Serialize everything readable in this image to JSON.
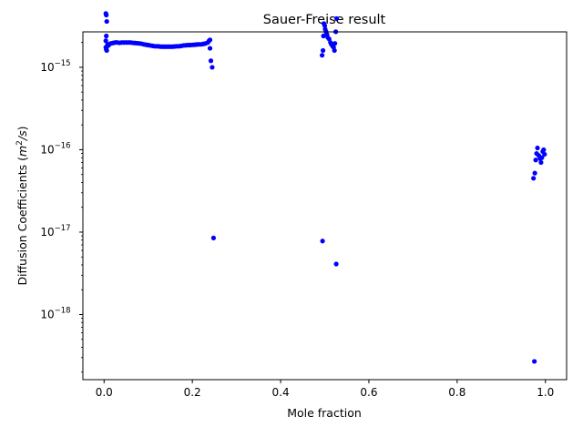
{
  "chart_data": {
    "type": "scatter",
    "title": "Sauer-Freise result",
    "xlabel": "Mole fraction",
    "ylabel_main": "Diffusion Coefficients (",
    "ylabel_math_base": "m",
    "ylabel_math_sup": "2",
    "ylabel_math_rest": "/s",
    "ylabel_close": ")",
    "yscale": "log",
    "xlim": [
      -0.048,
      1.048
    ],
    "ylim_exp": [
      -18.79,
      -14.57
    ],
    "x_ticks": [
      {
        "value": 0.0,
        "label": "0.0"
      },
      {
        "value": 0.2,
        "label": "0.2"
      },
      {
        "value": 0.4,
        "label": "0.4"
      },
      {
        "value": 0.6,
        "label": "0.6"
      },
      {
        "value": 0.8,
        "label": "0.8"
      },
      {
        "value": 1.0,
        "label": "1.0"
      }
    ],
    "y_ticks": [
      {
        "exp": -15,
        "base": "10",
        "sup": "−15"
      },
      {
        "exp": -16,
        "base": "10",
        "sup": "−16"
      },
      {
        "exp": -17,
        "base": "10",
        "sup": "−17"
      },
      {
        "exp": -18,
        "base": "10",
        "sup": "−18"
      }
    ],
    "marker_color": "#0000ff",
    "series": [
      {
        "points": [
          [
            0.004,
            4.5e-15
          ],
          [
            0.005,
            4.3e-15
          ],
          [
            0.006,
            3.6e-15
          ],
          [
            0.005,
            2.4e-15
          ],
          [
            0.004,
            2.1e-15
          ],
          [
            0.004,
            1.75e-15
          ],
          [
            0.005,
            1.65e-15
          ],
          [
            0.006,
            1.6e-15
          ],
          [
            0.007,
            1.8e-15
          ],
          [
            0.008,
            1.9e-15
          ],
          [
            0.01,
            1.85e-15
          ],
          [
            0.012,
            1.9e-15
          ],
          [
            0.015,
            1.95e-15
          ],
          [
            0.02,
            1.97e-15
          ],
          [
            0.025,
            2e-15
          ],
          [
            0.03,
            2e-15
          ],
          [
            0.035,
            1.98e-15
          ],
          [
            0.04,
            2e-15
          ],
          [
            0.045,
            2e-15
          ],
          [
            0.05,
            2e-15
          ],
          [
            0.055,
            2e-15
          ],
          [
            0.06,
            2e-15
          ],
          [
            0.065,
            1.98e-15
          ],
          [
            0.07,
            1.97e-15
          ],
          [
            0.075,
            1.96e-15
          ],
          [
            0.08,
            1.95e-15
          ],
          [
            0.085,
            1.93e-15
          ],
          [
            0.09,
            1.9e-15
          ],
          [
            0.095,
            1.88e-15
          ],
          [
            0.1,
            1.86e-15
          ],
          [
            0.105,
            1.84e-15
          ],
          [
            0.11,
            1.82e-15
          ],
          [
            0.115,
            1.8e-15
          ],
          [
            0.12,
            1.8e-15
          ],
          [
            0.125,
            1.79e-15
          ],
          [
            0.13,
            1.78e-15
          ],
          [
            0.135,
            1.78e-15
          ],
          [
            0.14,
            1.78e-15
          ],
          [
            0.145,
            1.78e-15
          ],
          [
            0.15,
            1.78e-15
          ],
          [
            0.155,
            1.78e-15
          ],
          [
            0.16,
            1.79e-15
          ],
          [
            0.165,
            1.8e-15
          ],
          [
            0.17,
            1.8e-15
          ],
          [
            0.175,
            1.82e-15
          ],
          [
            0.18,
            1.84e-15
          ],
          [
            0.185,
            1.85e-15
          ],
          [
            0.19,
            1.86e-15
          ],
          [
            0.195,
            1.86e-15
          ],
          [
            0.2,
            1.87e-15
          ],
          [
            0.205,
            1.88e-15
          ],
          [
            0.21,
            1.89e-15
          ],
          [
            0.215,
            1.9e-15
          ],
          [
            0.22,
            1.9e-15
          ],
          [
            0.225,
            1.92e-15
          ],
          [
            0.23,
            1.95e-15
          ],
          [
            0.235,
            2e-15
          ],
          [
            0.238,
            2.1e-15
          ],
          [
            0.24,
            2.15e-15
          ],
          [
            0.24,
            1.7e-15
          ],
          [
            0.242,
            1.2e-15
          ],
          [
            0.245,
            1e-15
          ],
          [
            0.248,
            8.5e-18
          ],
          [
            0.494,
            1.4e-15
          ],
          [
            0.496,
            1.6e-15
          ],
          [
            0.497,
            2.4e-15
          ],
          [
            0.498,
            3.4e-15
          ],
          [
            0.5,
            3.2e-15
          ],
          [
            0.501,
            2.9e-15
          ],
          [
            0.503,
            2.7e-15
          ],
          [
            0.505,
            2.5e-15
          ],
          [
            0.507,
            2.3e-15
          ],
          [
            0.51,
            2.2e-15
          ],
          [
            0.513,
            2e-15
          ],
          [
            0.515,
            1.9e-15
          ],
          [
            0.518,
            1.8e-15
          ],
          [
            0.52,
            1.75e-15
          ],
          [
            0.522,
            1.6e-15
          ],
          [
            0.523,
            1.95e-15
          ],
          [
            0.525,
            2.7e-15
          ],
          [
            0.527,
            3.9e-15
          ],
          [
            0.495,
            7.8e-18
          ],
          [
            0.526,
            4.1e-18
          ],
          [
            0.973,
            4.5e-17
          ],
          [
            0.976,
            5.2e-17
          ],
          [
            0.978,
            7.5e-17
          ],
          [
            0.98,
            9e-17
          ],
          [
            0.982,
            1.05e-16
          ],
          [
            0.985,
            8.5e-17
          ],
          [
            0.988,
            7.8e-17
          ],
          [
            0.99,
            7e-17
          ],
          [
            0.992,
            8e-17
          ],
          [
            0.994,
            9.5e-17
          ],
          [
            0.996,
            1e-16
          ],
          [
            0.998,
            8.8e-17
          ],
          [
            0.975,
            2.7e-19
          ]
        ]
      }
    ]
  }
}
